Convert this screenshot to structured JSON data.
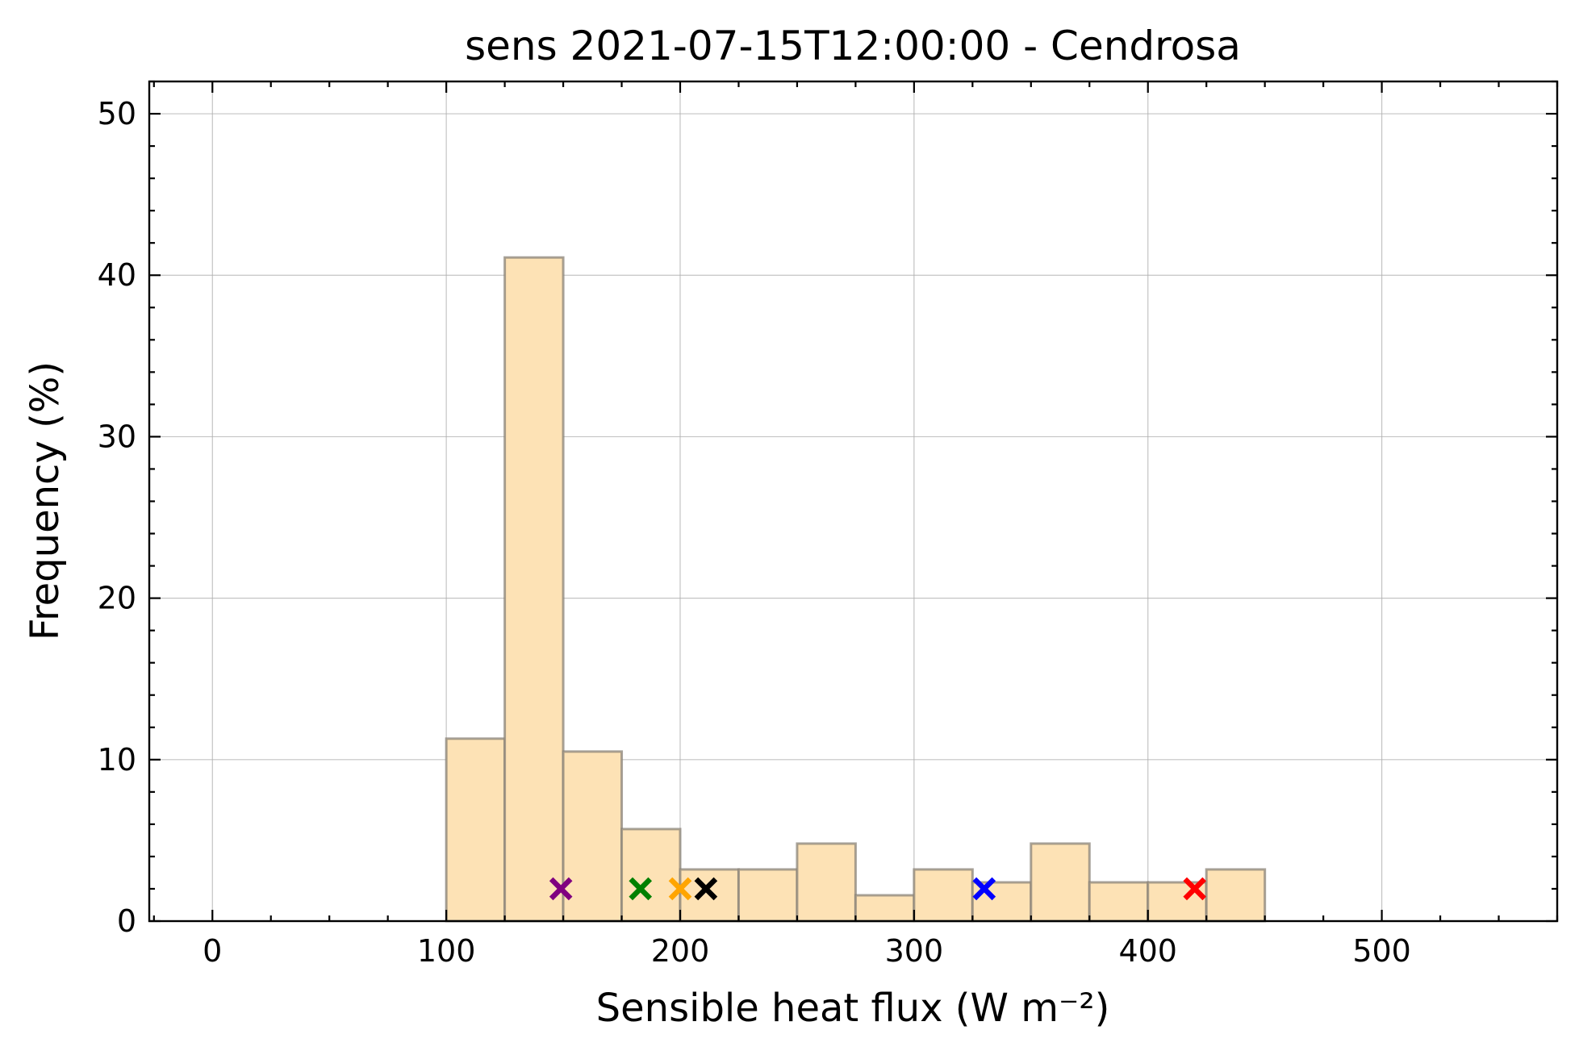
{
  "chart_data": {
    "type": "bar",
    "title": "sens 2021-07-15T12:00:00 - Cendrosa",
    "xlabel": "Sensible heat flux (W m⁻²)",
    "ylabel": "Frequency (%)",
    "xlim": [
      -27,
      575
    ],
    "ylim": [
      0,
      52
    ],
    "xticks": [
      0,
      100,
      200,
      300,
      400,
      500
    ],
    "yticks": [
      0,
      10,
      20,
      30,
      40,
      50
    ],
    "grid": true,
    "bin_width": 25,
    "bins": [
      {
        "start": 100,
        "end": 125,
        "value": 11.3
      },
      {
        "start": 125,
        "end": 150,
        "value": 41.1
      },
      {
        "start": 150,
        "end": 175,
        "value": 10.5
      },
      {
        "start": 175,
        "end": 200,
        "value": 5.7
      },
      {
        "start": 200,
        "end": 225,
        "value": 3.2
      },
      {
        "start": 225,
        "end": 250,
        "value": 3.2
      },
      {
        "start": 250,
        "end": 275,
        "value": 4.8
      },
      {
        "start": 275,
        "end": 300,
        "value": 1.6
      },
      {
        "start": 300,
        "end": 325,
        "value": 3.2
      },
      {
        "start": 325,
        "end": 350,
        "value": 2.4
      },
      {
        "start": 350,
        "end": 375,
        "value": 4.8
      },
      {
        "start": 375,
        "end": 400,
        "value": 2.4
      },
      {
        "start": 400,
        "end": 425,
        "value": 2.4
      },
      {
        "start": 425,
        "end": 450,
        "value": 3.2
      }
    ],
    "bar_color": "#fde2b5",
    "markers": [
      {
        "x": 149,
        "y": 2,
        "color": "#800080"
      },
      {
        "x": 183,
        "y": 2,
        "color": "#008000"
      },
      {
        "x": 200,
        "y": 2,
        "color": "#ffa500"
      },
      {
        "x": 211,
        "y": 2,
        "color": "#000000"
      },
      {
        "x": 330,
        "y": 2,
        "color": "#0000ff"
      },
      {
        "x": 420,
        "y": 2,
        "color": "#ff0000"
      }
    ]
  }
}
